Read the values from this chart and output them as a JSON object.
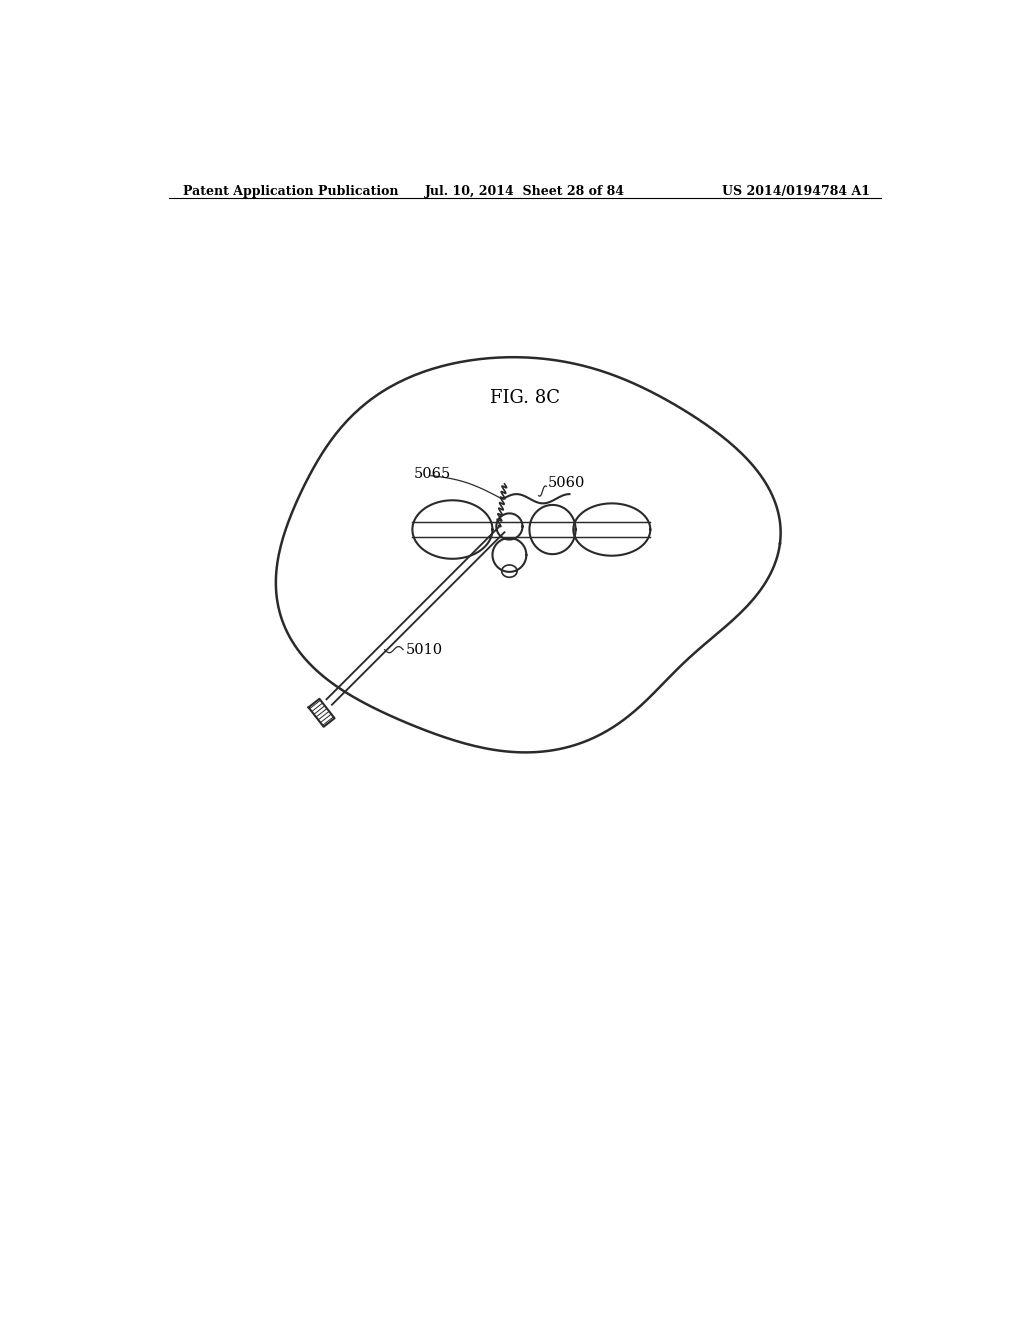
{
  "header_left": "Patent Application Publication",
  "header_mid": "Jul. 10, 2014  Sheet 28 of 84",
  "header_right": "US 2014/0194784 A1",
  "figure_label": "FIG. 8C",
  "label_5065": "5065",
  "label_5060": "5060",
  "label_5010": "5010",
  "bg_color": "#ffffff",
  "line_color": "#2a2a2a",
  "line_width": 1.5,
  "thin_line": 1.0
}
